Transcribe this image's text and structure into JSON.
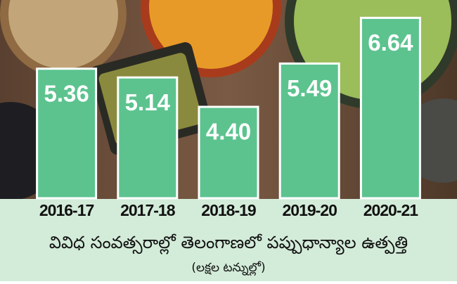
{
  "chart_data": {
    "type": "bar",
    "title": "వివిధ సంవత్సరాల్లో తెలంగాణలో పప్పుధాన్యాల ఉత్పత్తి",
    "subtitle": "(లక్షల టన్నుల్లో)",
    "categories": [
      "2016-17",
      "2017-18",
      "2018-19",
      "2019-20",
      "2020-21"
    ],
    "values": [
      5.36,
      5.14,
      4.4,
      5.49,
      6.64
    ],
    "value_labels": [
      "5.36",
      "5.14",
      "4.40",
      "5.49",
      "6.64"
    ],
    "color": "#5cc38f",
    "ylim": [
      2.1,
      6.7
    ]
  }
}
